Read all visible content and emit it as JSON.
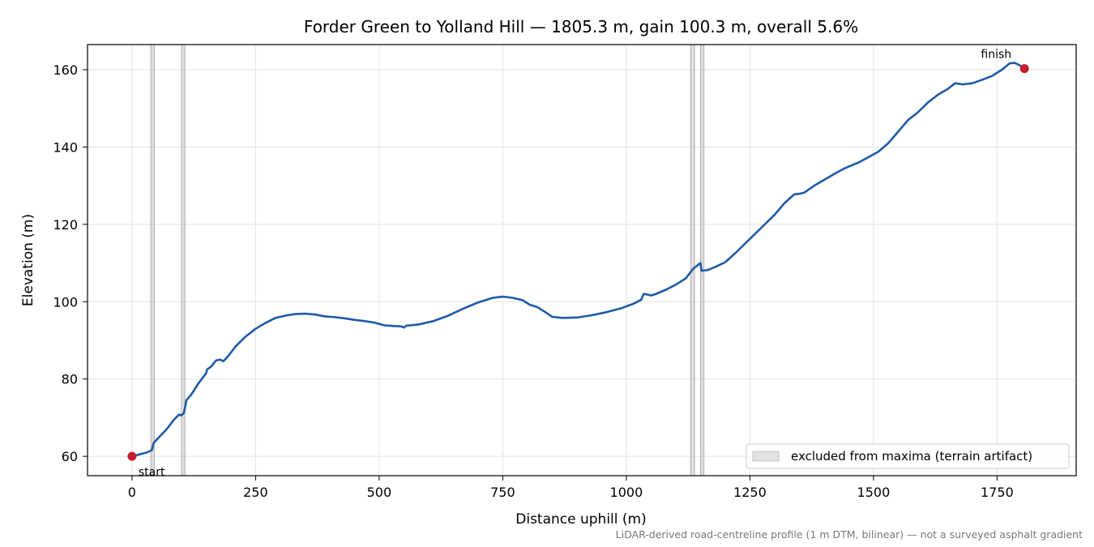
{
  "chart_data": {
    "type": "line",
    "title": "Forder Green to Yolland Hill — 1805.3 m, gain 100.3 m, overall 5.6%",
    "xlabel": "Distance uphill (m)",
    "ylabel": "Elevation (m)",
    "xlim": [
      -90,
      1910
    ],
    "ylim": [
      55.0,
      166.5
    ],
    "x_ticks": [
      0,
      250,
      500,
      750,
      1000,
      1250,
      1500,
      1750
    ],
    "y_ticks": [
      60,
      80,
      100,
      120,
      140,
      160
    ],
    "grid": true,
    "series": [
      {
        "color": "#1f5aa6",
        "points": [
          [
            0,
            60.0
          ],
          [
            15,
            60.5
          ],
          [
            30,
            61.0
          ],
          [
            40,
            61.6
          ],
          [
            44,
            63.5
          ],
          [
            55,
            65.0
          ],
          [
            70,
            67.0
          ],
          [
            85,
            69.5
          ],
          [
            95,
            70.8
          ],
          [
            100,
            70.6
          ],
          [
            105,
            71.2
          ],
          [
            110,
            74.5
          ],
          [
            120,
            76.0
          ],
          [
            135,
            79.0
          ],
          [
            150,
            81.5
          ],
          [
            152,
            82.5
          ],
          [
            160,
            83.2
          ],
          [
            170,
            84.8
          ],
          [
            178,
            85.0
          ],
          [
            185,
            84.6
          ],
          [
            195,
            86.0
          ],
          [
            210,
            88.5
          ],
          [
            230,
            91.0
          ],
          [
            250,
            93.0
          ],
          [
            270,
            94.5
          ],
          [
            290,
            95.8
          ],
          [
            310,
            96.4
          ],
          [
            330,
            96.8
          ],
          [
            350,
            96.9
          ],
          [
            370,
            96.7
          ],
          [
            390,
            96.2
          ],
          [
            410,
            96.0
          ],
          [
            430,
            95.7
          ],
          [
            450,
            95.3
          ],
          [
            470,
            95.0
          ],
          [
            490,
            94.6
          ],
          [
            510,
            93.9
          ],
          [
            530,
            93.7
          ],
          [
            545,
            93.6
          ],
          [
            550,
            93.3
          ],
          [
            555,
            93.8
          ],
          [
            580,
            94.1
          ],
          [
            610,
            95.0
          ],
          [
            640,
            96.4
          ],
          [
            670,
            98.2
          ],
          [
            700,
            99.8
          ],
          [
            730,
            101.0
          ],
          [
            750,
            101.3
          ],
          [
            770,
            101.0
          ],
          [
            790,
            100.4
          ],
          [
            805,
            99.2
          ],
          [
            820,
            98.6
          ],
          [
            835,
            97.4
          ],
          [
            850,
            96.1
          ],
          [
            870,
            95.8
          ],
          [
            900,
            95.9
          ],
          [
            930,
            96.5
          ],
          [
            960,
            97.3
          ],
          [
            990,
            98.3
          ],
          [
            1000,
            98.8
          ],
          [
            1015,
            99.5
          ],
          [
            1030,
            100.5
          ],
          [
            1035,
            102.0
          ],
          [
            1045,
            101.8
          ],
          [
            1050,
            101.6
          ],
          [
            1060,
            102.0
          ],
          [
            1080,
            103.1
          ],
          [
            1100,
            104.4
          ],
          [
            1120,
            106.0
          ],
          [
            1135,
            108.5
          ],
          [
            1150,
            110.0
          ],
          [
            1152,
            108.0
          ],
          [
            1165,
            108.2
          ],
          [
            1180,
            109.0
          ],
          [
            1200,
            110.2
          ],
          [
            1220,
            112.5
          ],
          [
            1240,
            115.0
          ],
          [
            1260,
            117.5
          ],
          [
            1280,
            120.0
          ],
          [
            1300,
            122.5
          ],
          [
            1320,
            125.5
          ],
          [
            1340,
            127.8
          ],
          [
            1350,
            127.9
          ],
          [
            1360,
            128.2
          ],
          [
            1380,
            130.0
          ],
          [
            1400,
            131.5
          ],
          [
            1420,
            133.0
          ],
          [
            1440,
            134.4
          ],
          [
            1460,
            135.5
          ],
          [
            1470,
            136.0
          ],
          [
            1490,
            137.4
          ],
          [
            1510,
            138.8
          ],
          [
            1530,
            141.0
          ],
          [
            1550,
            144.0
          ],
          [
            1570,
            147.0
          ],
          [
            1590,
            149.0
          ],
          [
            1610,
            151.5
          ],
          [
            1630,
            153.5
          ],
          [
            1650,
            155.0
          ],
          [
            1665,
            156.5
          ],
          [
            1680,
            156.2
          ],
          [
            1700,
            156.5
          ],
          [
            1720,
            157.4
          ],
          [
            1740,
            158.4
          ],
          [
            1760,
            160.0
          ],
          [
            1775,
            161.6
          ],
          [
            1785,
            161.8
          ],
          [
            1795,
            161.2
          ],
          [
            1805.3,
            160.3
          ]
        ]
      }
    ],
    "markers": [
      {
        "x": 0,
        "y": 60.0,
        "label": "start",
        "color": "#c41e2a"
      },
      {
        "x": 1805.3,
        "y": 160.3,
        "label": "finish",
        "color": "#c41e2a"
      }
    ],
    "excluded_regions": [
      [
        38,
        45
      ],
      [
        100,
        107
      ],
      [
        1130,
        1138
      ],
      [
        1150,
        1157
      ]
    ],
    "legend": {
      "label": "excluded from maxima (terrain artifact)",
      "placement": "lower-right"
    },
    "footnote": "LiDAR-derived road-centreline profile (1 m DTM, bilinear) — not a surveyed asphalt gradient"
  }
}
